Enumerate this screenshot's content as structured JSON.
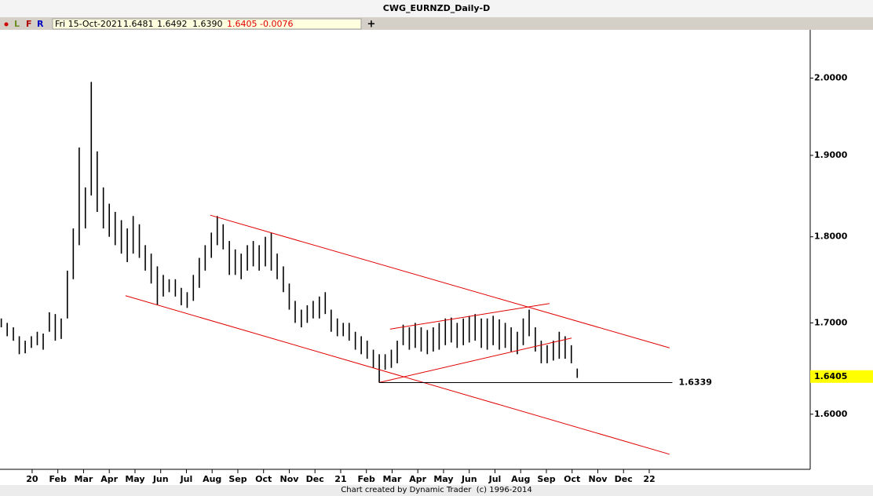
{
  "window_title": "CWG_EURNZD_Daily-D",
  "toolbar": {
    "buttons": [
      "L",
      "F",
      "R"
    ],
    "info": {
      "date": "Fri 15-Oct-2021",
      "open": "1.6481",
      "high": "1.6492",
      "low": "1.6390",
      "close": "1.6405",
      "change": "-0.0076"
    }
  },
  "chart_data": {
    "type": "ohlc",
    "x": [
      -1.2,
      -0.97,
      -0.73,
      -0.5,
      -0.27,
      -0.03,
      0.2,
      0.43,
      0.67,
      0.9,
      1.13,
      1.37,
      1.6,
      1.83,
      2.07,
      2.3,
      2.53,
      2.77,
      3,
      3.23,
      3.47,
      3.7,
      3.93,
      4.17,
      4.4,
      4.63,
      4.87,
      5.1,
      5.33,
      5.57,
      5.8,
      6.03,
      6.27,
      6.5,
      6.73,
      6.97,
      7.2,
      7.43,
      7.67,
      7.9,
      8.13,
      8.37,
      8.6,
      8.83,
      9.07,
      9.3,
      9.53,
      9.77,
      10,
      10.23,
      10.47,
      10.7,
      10.93,
      11.17,
      11.4,
      11.63,
      11.87,
      12.1,
      12.33,
      12.57,
      12.8,
      13.03,
      13.27,
      13.5,
      13.73,
      13.97,
      14.2,
      14.43,
      14.67,
      14.9,
      15.13,
      15.37,
      15.6,
      15.83,
      16.07,
      16.3,
      16.53,
      16.77,
      17,
      17.23,
      17.47,
      17.7,
      17.93,
      18.17,
      18.4,
      18.63,
      18.87,
      19.1,
      19.33,
      19.57,
      19.8,
      20.03,
      20.27,
      20.5,
      20.73,
      20.97,
      21.2
    ],
    "high": [
      1.705,
      1.7,
      1.695,
      1.685,
      1.68,
      1.685,
      1.69,
      1.688,
      1.712,
      1.71,
      1.705,
      1.76,
      1.81,
      1.91,
      1.86,
      1.995,
      1.905,
      1.86,
      1.84,
      1.83,
      1.82,
      1.81,
      1.825,
      1.815,
      1.79,
      1.78,
      1.765,
      1.755,
      1.75,
      1.75,
      1.74,
      1.735,
      1.755,
      1.775,
      1.79,
      1.805,
      1.825,
      1.815,
      1.795,
      1.785,
      1.78,
      1.79,
      1.795,
      1.79,
      1.8,
      1.805,
      1.78,
      1.765,
      1.745,
      1.725,
      1.715,
      1.72,
      1.725,
      1.73,
      1.735,
      1.715,
      1.705,
      1.7,
      1.7,
      1.69,
      1.685,
      1.68,
      1.67,
      1.665,
      1.665,
      1.67,
      1.68,
      1.698,
      1.695,
      1.7,
      1.695,
      1.692,
      1.695,
      1.7,
      1.705,
      1.706,
      1.7,
      1.705,
      1.708,
      1.71,
      1.705,
      1.705,
      1.708,
      1.704,
      1.7,
      1.695,
      1.69,
      1.705,
      1.715,
      1.695,
      1.68,
      1.675,
      1.68,
      1.69,
      1.685,
      1.675,
      1.6492
    ],
    "low": [
      1.695,
      1.685,
      1.68,
      1.665,
      1.666,
      1.672,
      1.675,
      1.67,
      1.69,
      1.68,
      1.682,
      1.705,
      1.75,
      1.79,
      1.81,
      1.85,
      1.83,
      1.81,
      1.8,
      1.79,
      1.78,
      1.77,
      1.78,
      1.775,
      1.76,
      1.745,
      1.72,
      1.73,
      1.735,
      1.73,
      1.72,
      1.717,
      1.725,
      1.74,
      1.76,
      1.775,
      1.79,
      1.785,
      1.755,
      1.755,
      1.75,
      1.76,
      1.765,
      1.76,
      1.765,
      1.76,
      1.75,
      1.735,
      1.715,
      1.7,
      1.695,
      1.7,
      1.705,
      1.705,
      1.71,
      1.69,
      1.685,
      1.685,
      1.68,
      1.67,
      1.665,
      1.66,
      1.65,
      1.6339,
      1.648,
      1.65,
      1.655,
      1.675,
      1.67,
      1.672,
      1.668,
      1.665,
      1.668,
      1.67,
      1.675,
      1.678,
      1.672,
      1.675,
      1.678,
      1.68,
      1.672,
      1.67,
      1.675,
      1.67,
      1.672,
      1.668,
      1.665,
      1.675,
      1.685,
      1.668,
      1.655,
      1.655,
      1.658,
      1.66,
      1.66,
      1.655,
      1.639
    ],
    "color": "#000000",
    "xlim": [
      -1.25,
      30.26
    ],
    "xticks": [
      {
        "value": 0,
        "label": "20"
      },
      {
        "value": 1,
        "label": "Feb"
      },
      {
        "value": 2,
        "label": "Mar"
      },
      {
        "value": 3,
        "label": "Apr"
      },
      {
        "value": 4,
        "label": "May"
      },
      {
        "value": 5,
        "label": "Jun"
      },
      {
        "value": 6,
        "label": "Jul"
      },
      {
        "value": 7,
        "label": "Aug"
      },
      {
        "value": 8,
        "label": "Sep"
      },
      {
        "value": 9,
        "label": "Oct"
      },
      {
        "value": 10,
        "label": "Nov"
      },
      {
        "value": 11,
        "label": "Dec"
      },
      {
        "value": 12,
        "label": "21"
      },
      {
        "value": 13,
        "label": "Feb"
      },
      {
        "value": 14,
        "label": "Mar"
      },
      {
        "value": 15,
        "label": "Apr"
      },
      {
        "value": 16,
        "label": "May"
      },
      {
        "value": 17,
        "label": "Jun"
      },
      {
        "value": 18,
        "label": "Jul"
      },
      {
        "value": 19,
        "label": "Aug"
      },
      {
        "value": 20,
        "label": "Sep"
      },
      {
        "value": 21,
        "label": "Oct"
      },
      {
        "value": 22,
        "label": "Nov"
      },
      {
        "value": 23,
        "label": "Dec"
      },
      {
        "value": 24,
        "label": "22"
      }
    ],
    "ylim": [
      1.5425,
      2.063
    ],
    "log_y": true,
    "yticks": [
      {
        "value": 1.6,
        "label": "1.6000"
      },
      {
        "value": 1.7,
        "label": "1.7000"
      },
      {
        "value": 1.8,
        "label": "1.8000"
      },
      {
        "value": 1.9,
        "label": "1.9000"
      },
      {
        "value": 2.0,
        "label": "2.0000"
      }
    ],
    "trendlines": [
      {
        "color": "#e00000",
        "x": [
          6.93,
          24.79
        ],
        "y": [
          1.826,
          1.672
        ]
      },
      {
        "color": "#e00000",
        "x": [
          3.63,
          24.79
        ],
        "y": [
          1.731,
          1.558
        ]
      },
      {
        "color": "#e00000",
        "x": [
          13.92,
          20.12
        ],
        "y": [
          1.693,
          1.722
        ]
      },
      {
        "color": "#e00000",
        "x": [
          13.5,
          20.98
        ],
        "y": [
          1.634,
          1.683
        ]
      }
    ],
    "level": {
      "value": 1.6339,
      "x": [
        13.5,
        24.9
      ],
      "color": "#000000"
    },
    "last_price": {
      "value": 1.6405,
      "color": "#ffff00"
    }
  },
  "footer": "Chart created by Dynamic Trader  (c) 1996-2014"
}
